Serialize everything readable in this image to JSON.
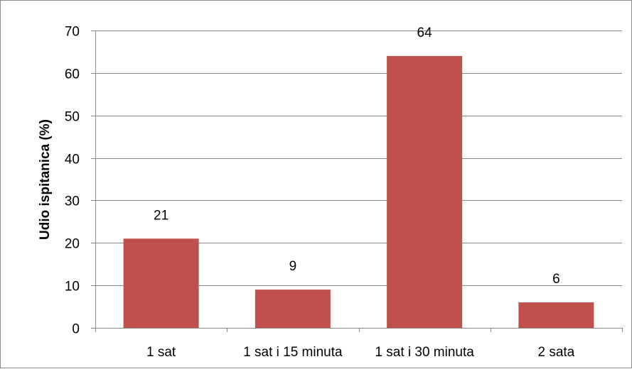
{
  "chart_data": {
    "type": "bar",
    "categories": [
      "1 sat",
      "1 sat i 15 minuta",
      "1 sat i 30 minuta",
      "2 sata"
    ],
    "values": [
      21,
      9,
      64,
      6
    ],
    "data_labels": [
      "21",
      "9",
      "64",
      "6"
    ],
    "ylabel": "Udio ispitanica (%)",
    "xlabel": "",
    "ylim": [
      0,
      70
    ],
    "yticks": [
      "0",
      "10",
      "20",
      "30",
      "40",
      "50",
      "60",
      "70"
    ],
    "grid": true,
    "legend": "none",
    "bar_color": "#c0504d"
  }
}
